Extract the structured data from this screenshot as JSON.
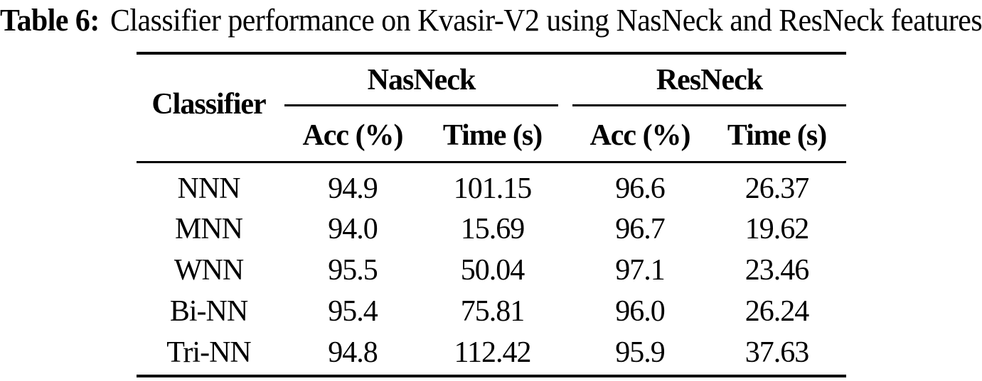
{
  "caption": {
    "label": "Table 6:",
    "text": "Classifier performance on Kvasir-V2 using NasNeck and ResNeck features"
  },
  "table": {
    "row_header": "Classifier",
    "groups": [
      {
        "name": "NasNeck",
        "columns": [
          "Acc (%)",
          "Time (s)"
        ]
      },
      {
        "name": "ResNeck",
        "columns": [
          "Acc (%)",
          "Time (s)"
        ]
      }
    ],
    "rows": [
      {
        "classifier": "NNN",
        "nas_acc": "94.9",
        "nas_time": "101.15",
        "res_acc": "96.6",
        "res_time": "26.37"
      },
      {
        "classifier": "MNN",
        "nas_acc": "94.0",
        "nas_time": "15.69",
        "res_acc": "96.7",
        "res_time": "19.62"
      },
      {
        "classifier": "WNN",
        "nas_acc": "95.5",
        "nas_time": "50.04",
        "res_acc": "97.1",
        "res_time": "23.46"
      },
      {
        "classifier": "Bi-NN",
        "nas_acc": "95.4",
        "nas_time": "75.81",
        "res_acc": "96.0",
        "res_time": "26.24"
      },
      {
        "classifier": "Tri-NN",
        "nas_acc": "94.8",
        "nas_time": "112.42",
        "res_acc": "95.9",
        "res_time": "37.63"
      }
    ]
  },
  "chart_data": {
    "type": "table",
    "title": "Table 6: Classifier performance on Kvasir-V2 using NasNeck and ResNeck features",
    "column_groups": [
      "NasNeck",
      "ResNeck"
    ],
    "columns": [
      "Classifier",
      "NasNeck Acc (%)",
      "NasNeck Time (s)",
      "ResNeck Acc (%)",
      "ResNeck Time (s)"
    ],
    "rows": [
      [
        "NNN",
        94.9,
        101.15,
        96.6,
        26.37
      ],
      [
        "MNN",
        94.0,
        15.69,
        96.7,
        19.62
      ],
      [
        "WNN",
        95.5,
        50.04,
        97.1,
        23.46
      ],
      [
        "Bi-NN",
        95.4,
        75.81,
        96.0,
        26.24
      ],
      [
        "Tri-NN",
        94.8,
        112.42,
        95.9,
        37.63
      ]
    ]
  },
  "colors": {
    "text": "#000000",
    "rule": "#000000",
    "background": "#ffffff"
  }
}
